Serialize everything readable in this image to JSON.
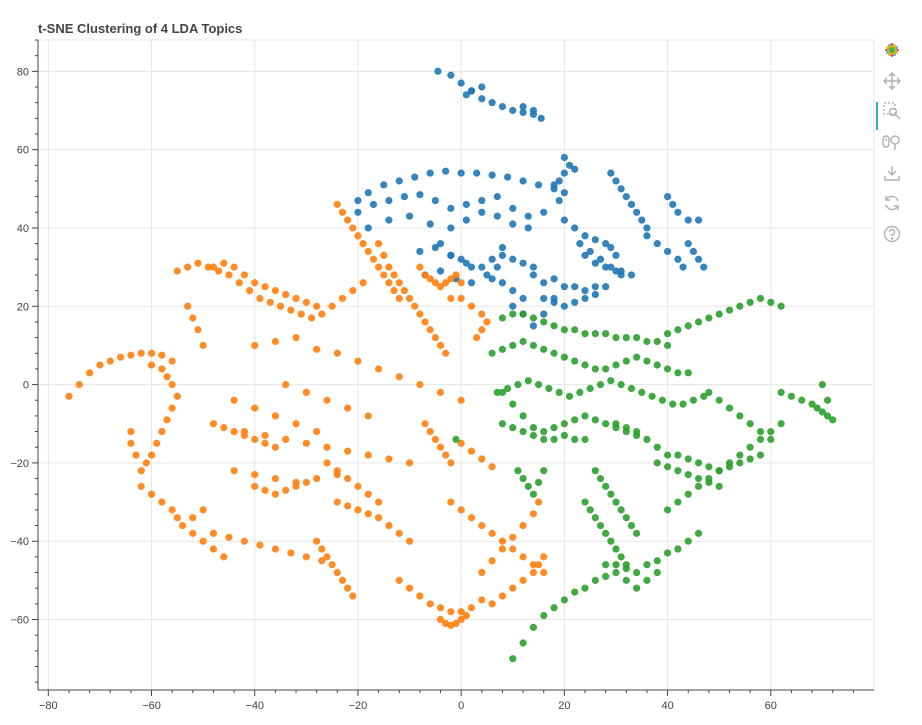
{
  "colors": {
    "background": "#ffffff",
    "grid": "#e5e5e5",
    "axis": "#444444",
    "topic_blue": "#1f77b4",
    "topic_orange": "#ff7f0e",
    "topic_green": "#2ca02c",
    "toolbar_icon": "#b0b0b0",
    "toolbar_active": "#26aae1"
  },
  "toolbar": {
    "tools": [
      {
        "name": "bokeh-logo-icon",
        "interactable": true
      },
      {
        "name": "pan-tool-icon",
        "interactable": true,
        "active": true
      },
      {
        "name": "box-zoom-tool-icon",
        "interactable": true
      },
      {
        "name": "wheel-zoom-tool-icon",
        "interactable": true
      },
      {
        "name": "save-tool-icon",
        "interactable": true
      },
      {
        "name": "reset-tool-icon",
        "interactable": true
      },
      {
        "name": "help-tool-icon",
        "interactable": true
      }
    ]
  },
  "chart_data": {
    "type": "scatter",
    "title": "t-SNE Clustering of 4 LDA Topics",
    "xlabel": "",
    "ylabel": "",
    "xlim": [
      -82,
      80
    ],
    "ylim": [
      -78,
      88
    ],
    "grid": true,
    "legend": "none",
    "x_ticks": [
      -80,
      -60,
      -40,
      -20,
      0,
      20,
      40,
      60
    ],
    "x_tick_labels": [
      "−80",
      "−60",
      "−40",
      "−20",
      "0",
      "20",
      "40",
      "60"
    ],
    "y_ticks": [
      -60,
      -40,
      -20,
      0,
      20,
      40,
      60,
      80
    ],
    "y_tick_labels": [
      "−60",
      "−40",
      "−20",
      "0",
      "20",
      "40",
      "60",
      "80"
    ],
    "series": [
      {
        "color": "#1f77b4",
        "x": [
          -4.5,
          -2,
          0,
          2,
          4,
          6,
          8,
          10,
          12,
          14,
          15.5,
          1,
          4,
          2,
          12,
          14,
          -20,
          -18,
          -15,
          -12,
          -9,
          -6,
          -3,
          0,
          3,
          6,
          9,
          12,
          15,
          18,
          20,
          -20,
          -17,
          -14,
          -11,
          -8,
          -5,
          -2,
          1,
          4,
          7,
          10,
          13,
          16,
          19,
          -18,
          -14,
          -10,
          -6,
          -2,
          1,
          4,
          7,
          10,
          13,
          -8,
          -5,
          -2,
          1,
          4,
          6,
          8,
          -7,
          -4,
          -1,
          2,
          5,
          7,
          14,
          16,
          18,
          20,
          22,
          24,
          26,
          28,
          16,
          18,
          20,
          22,
          24,
          26,
          20,
          21,
          22,
          20,
          19,
          18,
          20,
          22,
          24,
          26,
          28,
          29,
          30,
          23,
          25,
          27,
          29,
          31,
          33,
          24,
          26,
          28,
          30,
          31,
          29,
          30,
          31,
          32,
          33,
          34,
          35,
          36,
          36,
          38,
          40,
          42,
          43,
          40,
          41,
          42,
          44,
          46,
          44,
          45,
          46,
          47,
          8,
          10,
          12,
          14,
          -4,
          -2,
          0,
          2,
          10,
          12,
          14,
          16,
          18,
          6,
          8,
          10,
          12
        ],
        "y": [
          80,
          79,
          77,
          75,
          73,
          72,
          71,
          70,
          69.5,
          69,
          68,
          74,
          76,
          75,
          71,
          70,
          47,
          49,
          51,
          52,
          53,
          54,
          54.5,
          54,
          54,
          53.5,
          53,
          52,
          51,
          50,
          49,
          44,
          46,
          47,
          48,
          48.5,
          47,
          45,
          46,
          47,
          48,
          45,
          43,
          44,
          47,
          40,
          42,
          43,
          41,
          40,
          42,
          44,
          43,
          41,
          40,
          34,
          35,
          33,
          31,
          30,
          32,
          35,
          28,
          29,
          27,
          26,
          28,
          30,
          28,
          26,
          27,
          25,
          25,
          24,
          25,
          25,
          22,
          21,
          20,
          21,
          22,
          23,
          58,
          56,
          55,
          54,
          52,
          51,
          42,
          40,
          38,
          37,
          36,
          35,
          33,
          36,
          34,
          32,
          30,
          29,
          28,
          33,
          31,
          30,
          29,
          28,
          54,
          52,
          50,
          48,
          46,
          44,
          42,
          40,
          38,
          36,
          34,
          32,
          30,
          48,
          46,
          44,
          42,
          42,
          36,
          34,
          32,
          30,
          33,
          32,
          31,
          30,
          36,
          33,
          32,
          30,
          20,
          18,
          15,
          18,
          22,
          27,
          26,
          24,
          22
        ]
      },
      {
        "color": "#ff7f0e",
        "x": [
          -76,
          -74,
          -72,
          -70,
          -68,
          -66,
          -64,
          -62,
          -60,
          -58,
          -56,
          -60,
          -58,
          -57,
          -56,
          -55,
          -56,
          -57,
          -58,
          -59,
          -60,
          -61,
          -62,
          -63,
          -64,
          -64,
          -62,
          -60,
          -58,
          -56,
          -55,
          -54,
          -52,
          -50,
          -55,
          -53,
          -51,
          -49,
          -47,
          -45,
          -43,
          -41,
          -39,
          -37,
          -35,
          -33,
          -31,
          -29,
          -27,
          -25,
          -23,
          -21,
          -19,
          -53,
          -52,
          -51,
          -50,
          -48,
          -46,
          -44,
          -42,
          -40,
          -38,
          -36,
          -34,
          -32,
          -30,
          -28,
          -24,
          -23,
          -22,
          -21,
          -20,
          -19,
          -18,
          -17,
          -16,
          -15,
          -14,
          -13,
          -12,
          -16,
          -15,
          -14,
          -13,
          -12,
          -11,
          -10,
          -9,
          -8,
          -7,
          -6,
          -5,
          -4,
          -3,
          -8,
          -7,
          -6,
          -5,
          -4,
          -3,
          -2,
          -1,
          0,
          -2,
          0,
          2,
          4,
          5,
          4,
          3,
          -40,
          -36,
          -32,
          -28,
          -24,
          -20,
          -16,
          -12,
          -8,
          -4,
          0,
          -42,
          -38,
          -34,
          -30,
          -26,
          -22,
          -18,
          -14,
          -10,
          -44,
          -40,
          -36,
          -32,
          -28,
          -24,
          -48,
          -45,
          -42,
          -39,
          -36,
          -33,
          -30,
          -27,
          -40,
          -38,
          -36,
          -34,
          -32,
          -30,
          -48,
          -46,
          -44,
          -42,
          -40,
          -38,
          -36,
          -28,
          -27,
          -26,
          -25,
          -24,
          -23,
          -22,
          -21,
          -24,
          -22,
          -20,
          -18,
          -16,
          -14,
          -12,
          -10,
          -12,
          -10,
          -8,
          -6,
          -4,
          -2,
          0,
          2,
          4,
          -4,
          -3,
          -2,
          -1,
          0,
          1,
          -7,
          -6,
          -5,
          -4,
          -3,
          -2,
          0,
          2,
          4,
          6,
          4,
          6,
          8,
          10,
          12,
          14,
          15,
          6,
          8,
          10,
          12,
          14,
          15,
          16,
          -2,
          0,
          2,
          4,
          6,
          8,
          10,
          12,
          14,
          16,
          -26,
          -24,
          -22,
          -20,
          -18,
          -16,
          -44,
          -40,
          -36,
          -32,
          -28,
          -52,
          -50,
          -48,
          -46,
          -34,
          -30,
          -26,
          -22,
          -18
        ],
        "y": [
          -3,
          0,
          3,
          5,
          6,
          7,
          7.5,
          8,
          8,
          7.5,
          6,
          5,
          4,
          2,
          0,
          -3,
          -6,
          -9,
          -12,
          -15,
          -18,
          -20,
          -22,
          -18,
          -15,
          -12,
          -26,
          -28,
          -30,
          -32,
          -34,
          -36,
          -34,
          -32,
          29,
          30,
          31,
          30,
          29,
          28,
          26,
          24,
          22,
          21,
          20,
          19,
          18,
          17,
          18,
          20,
          22,
          24,
          26,
          20,
          17,
          14,
          10,
          30,
          31,
          30,
          28,
          26,
          25,
          24,
          23,
          22,
          21,
          20,
          46,
          44,
          42,
          40,
          38,
          36,
          34,
          32,
          30,
          28,
          26,
          24,
          22,
          36,
          33,
          30,
          28,
          26,
          24,
          22,
          20,
          18,
          16,
          14,
          12,
          10,
          8,
          30,
          28,
          27,
          26,
          25,
          26,
          27,
          28,
          26,
          22,
          22,
          20,
          18,
          16,
          14,
          12,
          10,
          11,
          12,
          9,
          8,
          6,
          4,
          2,
          0,
          -2,
          -4,
          -12,
          -13,
          -14,
          -15,
          -16,
          -17,
          -18,
          -19,
          -20,
          -22,
          -23,
          -24,
          -25,
          -24,
          -23,
          -38,
          -39,
          -40,
          -41,
          -42,
          -43,
          -44,
          -45,
          -26,
          -27,
          -28,
          -27,
          -26,
          -25,
          -10,
          -11,
          -12,
          -13,
          -14,
          -15,
          -16,
          -40,
          -42,
          -44,
          -46,
          -48,
          -50,
          -52,
          -54,
          -30,
          -31,
          -32,
          -33,
          -34,
          -36,
          -38,
          -40,
          -50,
          -52,
          -54,
          -56,
          -57,
          -58,
          -58,
          -57,
          -55,
          -60,
          -61,
          -61.5,
          -61,
          -60,
          -59,
          -10,
          -12,
          -14,
          -16,
          -18,
          -20,
          -15,
          -17,
          -19,
          -21,
          -48,
          -45,
          -42,
          -39,
          -36,
          -33,
          -30,
          -56,
          -54,
          -52,
          -50,
          -48,
          -46,
          -44,
          -30,
          -32,
          -34,
          -36,
          -38,
          -40,
          -42,
          -44,
          -46,
          -48,
          -20,
          -22,
          -24,
          -26,
          -28,
          -30,
          -4,
          -6,
          -8,
          -10,
          -12,
          -38,
          -40,
          -42,
          -44,
          0,
          -2,
          -4,
          -6,
          -8
        ]
      },
      {
        "color": "#2ca02c",
        "x": [
          8,
          10,
          12,
          14,
          16,
          18,
          20,
          22,
          24,
          26,
          28,
          30,
          32,
          34,
          36,
          38,
          40,
          6,
          8,
          10,
          12,
          14,
          16,
          18,
          20,
          22,
          24,
          26,
          28,
          30,
          32,
          34,
          36,
          38,
          40,
          42,
          44,
          7,
          9,
          11,
          13,
          15,
          17,
          19,
          21,
          23,
          25,
          27,
          29,
          31,
          33,
          35,
          37,
          39,
          41,
          43,
          45,
          47,
          8,
          10,
          12,
          14,
          16,
          18,
          20,
          22,
          24,
          26,
          28,
          30,
          32,
          34,
          8,
          10,
          12,
          14,
          16,
          18,
          20,
          22,
          24,
          40,
          42,
          44,
          46,
          48,
          50,
          52,
          54,
          56,
          58,
          60,
          62,
          48,
          50,
          52,
          54,
          56,
          58,
          60,
          62,
          64,
          66,
          68,
          69,
          70,
          71,
          72,
          71,
          70,
          40,
          42,
          44,
          46,
          48,
          50,
          52,
          54,
          56,
          58,
          30,
          32,
          34,
          36,
          38,
          40,
          42,
          44,
          46,
          26,
          27,
          28,
          29,
          30,
          31,
          32,
          33,
          34,
          24,
          25,
          26,
          27,
          28,
          29,
          30,
          31,
          32,
          30,
          32,
          34,
          36,
          38,
          40,
          42,
          44,
          46,
          48,
          50,
          52,
          54,
          56,
          58,
          60,
          62,
          38,
          40,
          42,
          44,
          46,
          48,
          50,
          10,
          12,
          14,
          16,
          18,
          20,
          22,
          24,
          26,
          28,
          11,
          12,
          13,
          14,
          15,
          16,
          28,
          30,
          32,
          34,
          36,
          38,
          -1
        ],
        "y": [
          17,
          18,
          18,
          17,
          16,
          15,
          14,
          14,
          13,
          13,
          13,
          12,
          12,
          12,
          11,
          11,
          10,
          8,
          9,
          10,
          11,
          10,
          9,
          8,
          7,
          6,
          5,
          4,
          4,
          5,
          6,
          7,
          6,
          5,
          4,
          3,
          3,
          -2,
          -1,
          0,
          1,
          0,
          -1,
          -2,
          -3,
          -2,
          -1,
          0,
          1,
          0,
          -1,
          -2,
          -3,
          -4,
          -5,
          -5,
          -4,
          -3,
          -10,
          -11,
          -12,
          -13,
          -12,
          -11,
          -10,
          -9,
          -8,
          -9,
          -10,
          -11,
          -12,
          -13,
          -2,
          -5,
          -8,
          -11,
          -14,
          -14,
          -13,
          -14,
          -14,
          13,
          14,
          15,
          16,
          17,
          18,
          19,
          20,
          21,
          22,
          21,
          20,
          -2,
          -4,
          -6,
          -8,
          -10,
          -12,
          -14,
          -2,
          -3,
          -4,
          -5,
          -6,
          -7,
          -8,
          -9,
          -4,
          0,
          -32,
          -30,
          -28,
          -26,
          -24,
          -22,
          -21,
          -20,
          -19,
          -18,
          -46,
          -47,
          -48,
          -46,
          -45,
          -43,
          -42,
          -40,
          -38,
          -22,
          -24,
          -26,
          -28,
          -30,
          -32,
          -34,
          -36,
          -38,
          -30,
          -32,
          -34,
          -36,
          -38,
          -40,
          -42,
          -44,
          -46,
          -10,
          -11,
          -12,
          -14,
          -16,
          -18,
          -18,
          -19,
          -20,
          -21,
          -22,
          -20,
          -18,
          -16,
          -14,
          -12,
          -10,
          -20,
          -21,
          -22,
          -23,
          -24,
          -25,
          -26,
          -70,
          -66,
          -62,
          -59,
          -57,
          -55,
          -53,
          -52,
          -50,
          -49,
          -22,
          -24,
          -26,
          -28,
          -25,
          -22,
          -46,
          -48,
          -50,
          -52,
          -50,
          -48,
          -14
        ]
      }
    ]
  }
}
